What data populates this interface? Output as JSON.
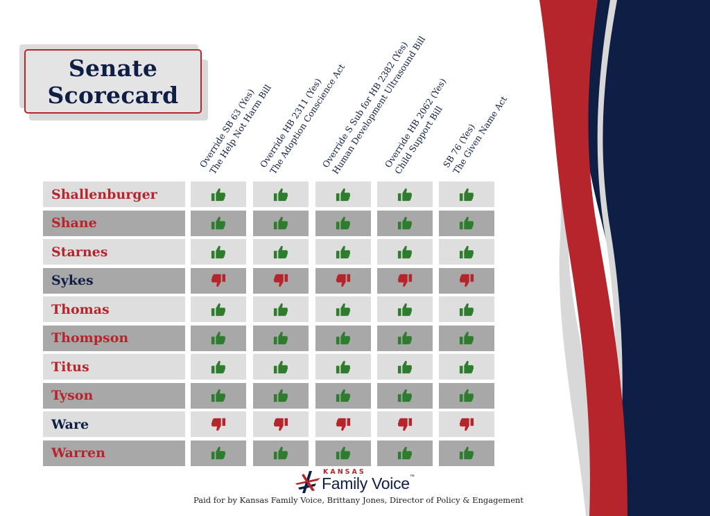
{
  "title": {
    "line1": "Senate",
    "line2": "Scorecard"
  },
  "columns": [
    {
      "line1": "Override SB 63 (Yes)",
      "line2": "The Help Not Harm Bill"
    },
    {
      "line1": "Override HB 2311 (Yes)",
      "line2": "The Adoption Conscience Act"
    },
    {
      "line1": "Override S Sub for HB 2382 (Yes)",
      "line2": "Human Development Ultrasound Bill"
    },
    {
      "line1": "Override HB 2062 (Yes)",
      "line2": "Child Support Bill"
    },
    {
      "line1": "SB 76 (Yes)",
      "line2": "The Given Name Act"
    }
  ],
  "senators": [
    {
      "name": "Shallenburger",
      "party": "R",
      "votes": [
        "up",
        "up",
        "up",
        "up",
        "up"
      ]
    },
    {
      "name": "Shane",
      "party": "R",
      "votes": [
        "up",
        "up",
        "up",
        "up",
        "up"
      ]
    },
    {
      "name": "Starnes",
      "party": "R",
      "votes": [
        "up",
        "up",
        "up",
        "up",
        "up"
      ]
    },
    {
      "name": "Sykes",
      "party": "D",
      "votes": [
        "down",
        "down",
        "down",
        "down",
        "down"
      ]
    },
    {
      "name": "Thomas",
      "party": "R",
      "votes": [
        "up",
        "up",
        "up",
        "up",
        "up"
      ]
    },
    {
      "name": "Thompson",
      "party": "R",
      "votes": [
        "up",
        "up",
        "up",
        "up",
        "up"
      ]
    },
    {
      "name": "Titus",
      "party": "R",
      "votes": [
        "up",
        "up",
        "up",
        "up",
        "up"
      ]
    },
    {
      "name": "Tyson",
      "party": "R",
      "votes": [
        "up",
        "up",
        "up",
        "up",
        "up"
      ]
    },
    {
      "name": "Ware",
      "party": "D",
      "votes": [
        "down",
        "down",
        "down",
        "down",
        "down"
      ]
    },
    {
      "name": "Warren",
      "party": "R",
      "votes": [
        "up",
        "up",
        "up",
        "up",
        "up"
      ]
    }
  ],
  "colors": {
    "republican_name": "#b5252b",
    "democrat_name": "#0e1e45",
    "thumb_up": "#2e7d2e",
    "thumb_down": "#b5252b",
    "navy": "#0e1e45",
    "red": "#b5252b"
  },
  "icons": {
    "yes": "thumbs-up-icon",
    "no": "thumbs-down-icon"
  },
  "logo": {
    "top": "KANSAS",
    "main": "Family Voice",
    "tm": "™"
  },
  "footer": "Paid for by Kansas Family Voice, Brittany Jones, Director of Policy & Engagement"
}
